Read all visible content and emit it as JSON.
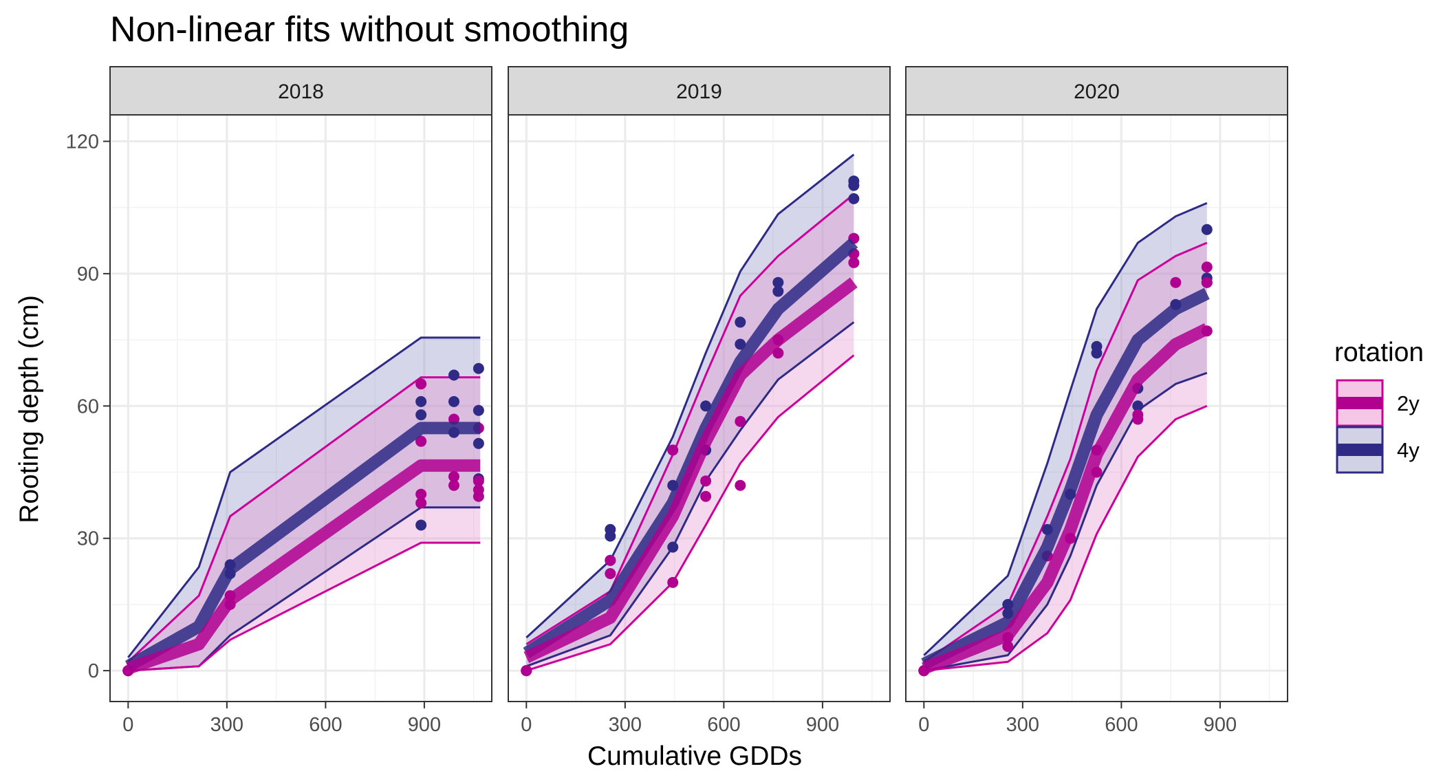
{
  "chart_data": {
    "type": "line",
    "title": "Non-linear fits without smoothing",
    "xlabel": "Cumulative GDDs",
    "ylabel": "Rooting depth (cm)",
    "xlim": [
      -55,
      1105
    ],
    "ylim": [
      -7,
      126
    ],
    "x_ticks": [
      0,
      300,
      600,
      900
    ],
    "y_ticks": [
      0,
      30,
      60,
      90,
      120
    ],
    "grid": true,
    "legend_position": "right",
    "legend": {
      "title": "rotation",
      "entries": [
        {
          "label": "2y",
          "line_color": "#B0008F",
          "fill_color": "#F5C6E5",
          "border_color": "#CC0099"
        },
        {
          "label": "4y",
          "line_color": "#2E2A85",
          "fill_color": "#D2D2E6",
          "border_color": "#2E2A85"
        }
      ]
    },
    "colors": {
      "2y_line": "#B0008F",
      "2y_band": "#E68FCF",
      "2y_band_edge": "#CC0099",
      "4y_line": "#2E2A85",
      "4y_band": "#8A8AC2",
      "4y_band_edge": "#2E2A85",
      "overlap_line": "#5C1F8C"
    },
    "panels": [
      {
        "strip": "2018",
        "series": [
          {
            "name": "2y",
            "x": [
              0,
              215,
              310,
              890,
              1070
            ],
            "fit": [
              0.5,
              6,
              16,
              46.5,
              46.5
            ],
            "lower": [
              0,
              1,
              7,
              29,
              29
            ],
            "upper": [
              2,
              17,
              35,
              66.5,
              66.5
            ],
            "points_x": [
              0,
              0,
              0,
              310,
              310,
              890,
              890,
              890,
              890,
              990,
              990,
              990,
              1065,
              1065,
              1065,
              1065
            ],
            "points_y": [
              0,
              0,
              0,
              15,
              17,
              65,
              40,
              38,
              52,
              57,
              42,
              44,
              55,
              41,
              39.5,
              43
            ]
          },
          {
            "name": "4y",
            "x": [
              0,
              215,
              310,
              890,
              1070
            ],
            "fit": [
              1,
              10,
              23,
              55,
              55
            ],
            "lower": [
              0,
              1,
              8,
              37,
              37
            ],
            "upper": [
              3,
              23.5,
              45,
              75.5,
              75.5
            ],
            "points_x": [
              0,
              0,
              0,
              310,
              310,
              890,
              890,
              890,
              890,
              990,
              990,
              990,
              1065,
              1065,
              1065,
              1065
            ],
            "points_y": [
              0,
              0,
              0,
              24,
              22,
              58,
              61,
              52,
              33,
              67,
              61,
              54,
              68.5,
              59,
              51.5,
              43.5
            ]
          }
        ]
      },
      {
        "strip": "2019",
        "series": [
          {
            "name": "2y",
            "x": [
              0,
              255,
              445,
              545,
              650,
              765,
              995
            ],
            "fit": [
              3,
              12,
              35,
              52,
              67,
              75,
              88
            ],
            "lower": [
              0,
              6,
              20,
              33,
              47,
              57.5,
              71.5
            ],
            "upper": [
              6,
              18,
              49,
              67,
              85,
              94,
              108
            ],
            "points_x": [
              0,
              0,
              0,
              255,
              255,
              445,
              445,
              545,
              545,
              650,
              650,
              765,
              765,
              995,
              995,
              995
            ],
            "points_y": [
              0,
              0,
              0,
              22,
              25,
              50,
              20,
              43,
              39.5,
              56.5,
              42,
              75,
              72,
              98,
              94.5,
              92.5
            ]
          },
          {
            "name": "4y",
            "x": [
              0,
              255,
              445,
              545,
              650,
              765,
              995
            ],
            "fit": [
              4,
              16,
              38,
              55,
              70,
              82,
              97
            ],
            "lower": [
              1,
              8,
              28,
              43,
              54.5,
              66,
              79
            ],
            "upper": [
              7.5,
              25,
              53,
              72,
              90.5,
              103.5,
              117
            ],
            "points_x": [
              0,
              0,
              255,
              255,
              255,
              445,
              445,
              545,
              545,
              650,
              650,
              765,
              765,
              995,
              995,
              995
            ],
            "points_y": [
              0,
              0,
              32,
              30.5,
              25,
              28,
              42,
              60,
              50,
              79,
              74,
              88,
              86,
              111,
              110,
              107
            ]
          }
        ]
      },
      {
        "strip": "2020",
        "series": [
          {
            "name": "2y",
            "x": [
              0,
              255,
              375,
              445,
              525,
              650,
              765,
              860
            ],
            "fit": [
              0.5,
              8,
              20,
              32,
              49,
              66,
              74,
              77.5
            ],
            "lower": [
              0,
              2,
              8.5,
              16,
              31,
              48.5,
              57,
              60
            ],
            "upper": [
              2,
              15,
              35,
              48,
              68,
              88.5,
              94,
              97
            ],
            "points_x": [
              0,
              0,
              0,
              255,
              255,
              375,
              445,
              525,
              525,
              650,
              650,
              765,
              860,
              860,
              860
            ],
            "points_y": [
              0,
              0,
              0,
              5.5,
              7.5,
              26,
              30,
              50,
              45,
              58,
              57,
              88,
              91.5,
              88,
              77
            ]
          },
          {
            "name": "4y",
            "x": [
              0,
              255,
              375,
              445,
              525,
              650,
              765,
              860
            ],
            "fit": [
              1.5,
              11,
              28,
              41,
              58,
              75,
              82,
              85.5
            ],
            "lower": [
              0,
              3.5,
              15,
              26,
              42,
              59,
              65,
              67.5
            ],
            "upper": [
              3.5,
              21.5,
              47,
              63.5,
              82,
              97,
              103,
              106
            ],
            "points_x": [
              0,
              0,
              255,
              255,
              375,
              445,
              525,
              525,
              650,
              650,
              765,
              860,
              860,
              860
            ],
            "points_y": [
              0,
              0,
              15,
              13,
              32,
              40,
              73.5,
              72,
              64,
              60,
              83,
              100,
              89,
              88
            ]
          }
        ]
      }
    ]
  }
}
